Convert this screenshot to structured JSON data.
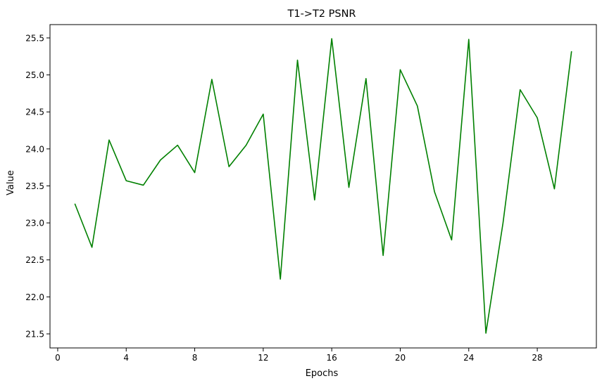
{
  "chart_data": {
    "type": "line",
    "title": "T1->T2 PSNR",
    "xlabel": "Epochs",
    "ylabel": "Value",
    "xlim": [
      -0.45,
      31.45
    ],
    "ylim": [
      21.31,
      25.68
    ],
    "x_ticks": [
      0,
      4,
      8,
      12,
      16,
      20,
      24,
      28
    ],
    "y_ticks": [
      21.5,
      22.0,
      22.5,
      23.0,
      23.5,
      24.0,
      24.5,
      25.0,
      25.5
    ],
    "x_tick_labels": [
      "0",
      "4",
      "8",
      "12",
      "16",
      "20",
      "24",
      "28"
    ],
    "y_tick_labels": [
      "21.5",
      "22.0",
      "22.5",
      "23.0",
      "23.5",
      "24.0",
      "24.5",
      "25.0",
      "25.5"
    ],
    "grid": false,
    "series": [
      {
        "color": "#008000",
        "x": [
          1,
          2,
          3,
          4,
          5,
          6,
          7,
          8,
          9,
          10,
          11,
          12,
          13,
          14,
          15,
          16,
          17,
          18,
          19,
          20,
          21,
          22,
          23,
          24,
          25,
          26,
          27,
          28,
          29,
          30
        ],
        "y": [
          23.26,
          22.67,
          24.12,
          23.57,
          23.51,
          23.85,
          24.05,
          23.68,
          24.94,
          23.76,
          24.05,
          24.47,
          22.24,
          25.2,
          23.31,
          25.49,
          23.48,
          24.95,
          22.56,
          25.07,
          24.58,
          23.42,
          22.77,
          25.48,
          21.51,
          23.0,
          24.8,
          24.42,
          23.46,
          25.32
        ]
      }
    ]
  }
}
